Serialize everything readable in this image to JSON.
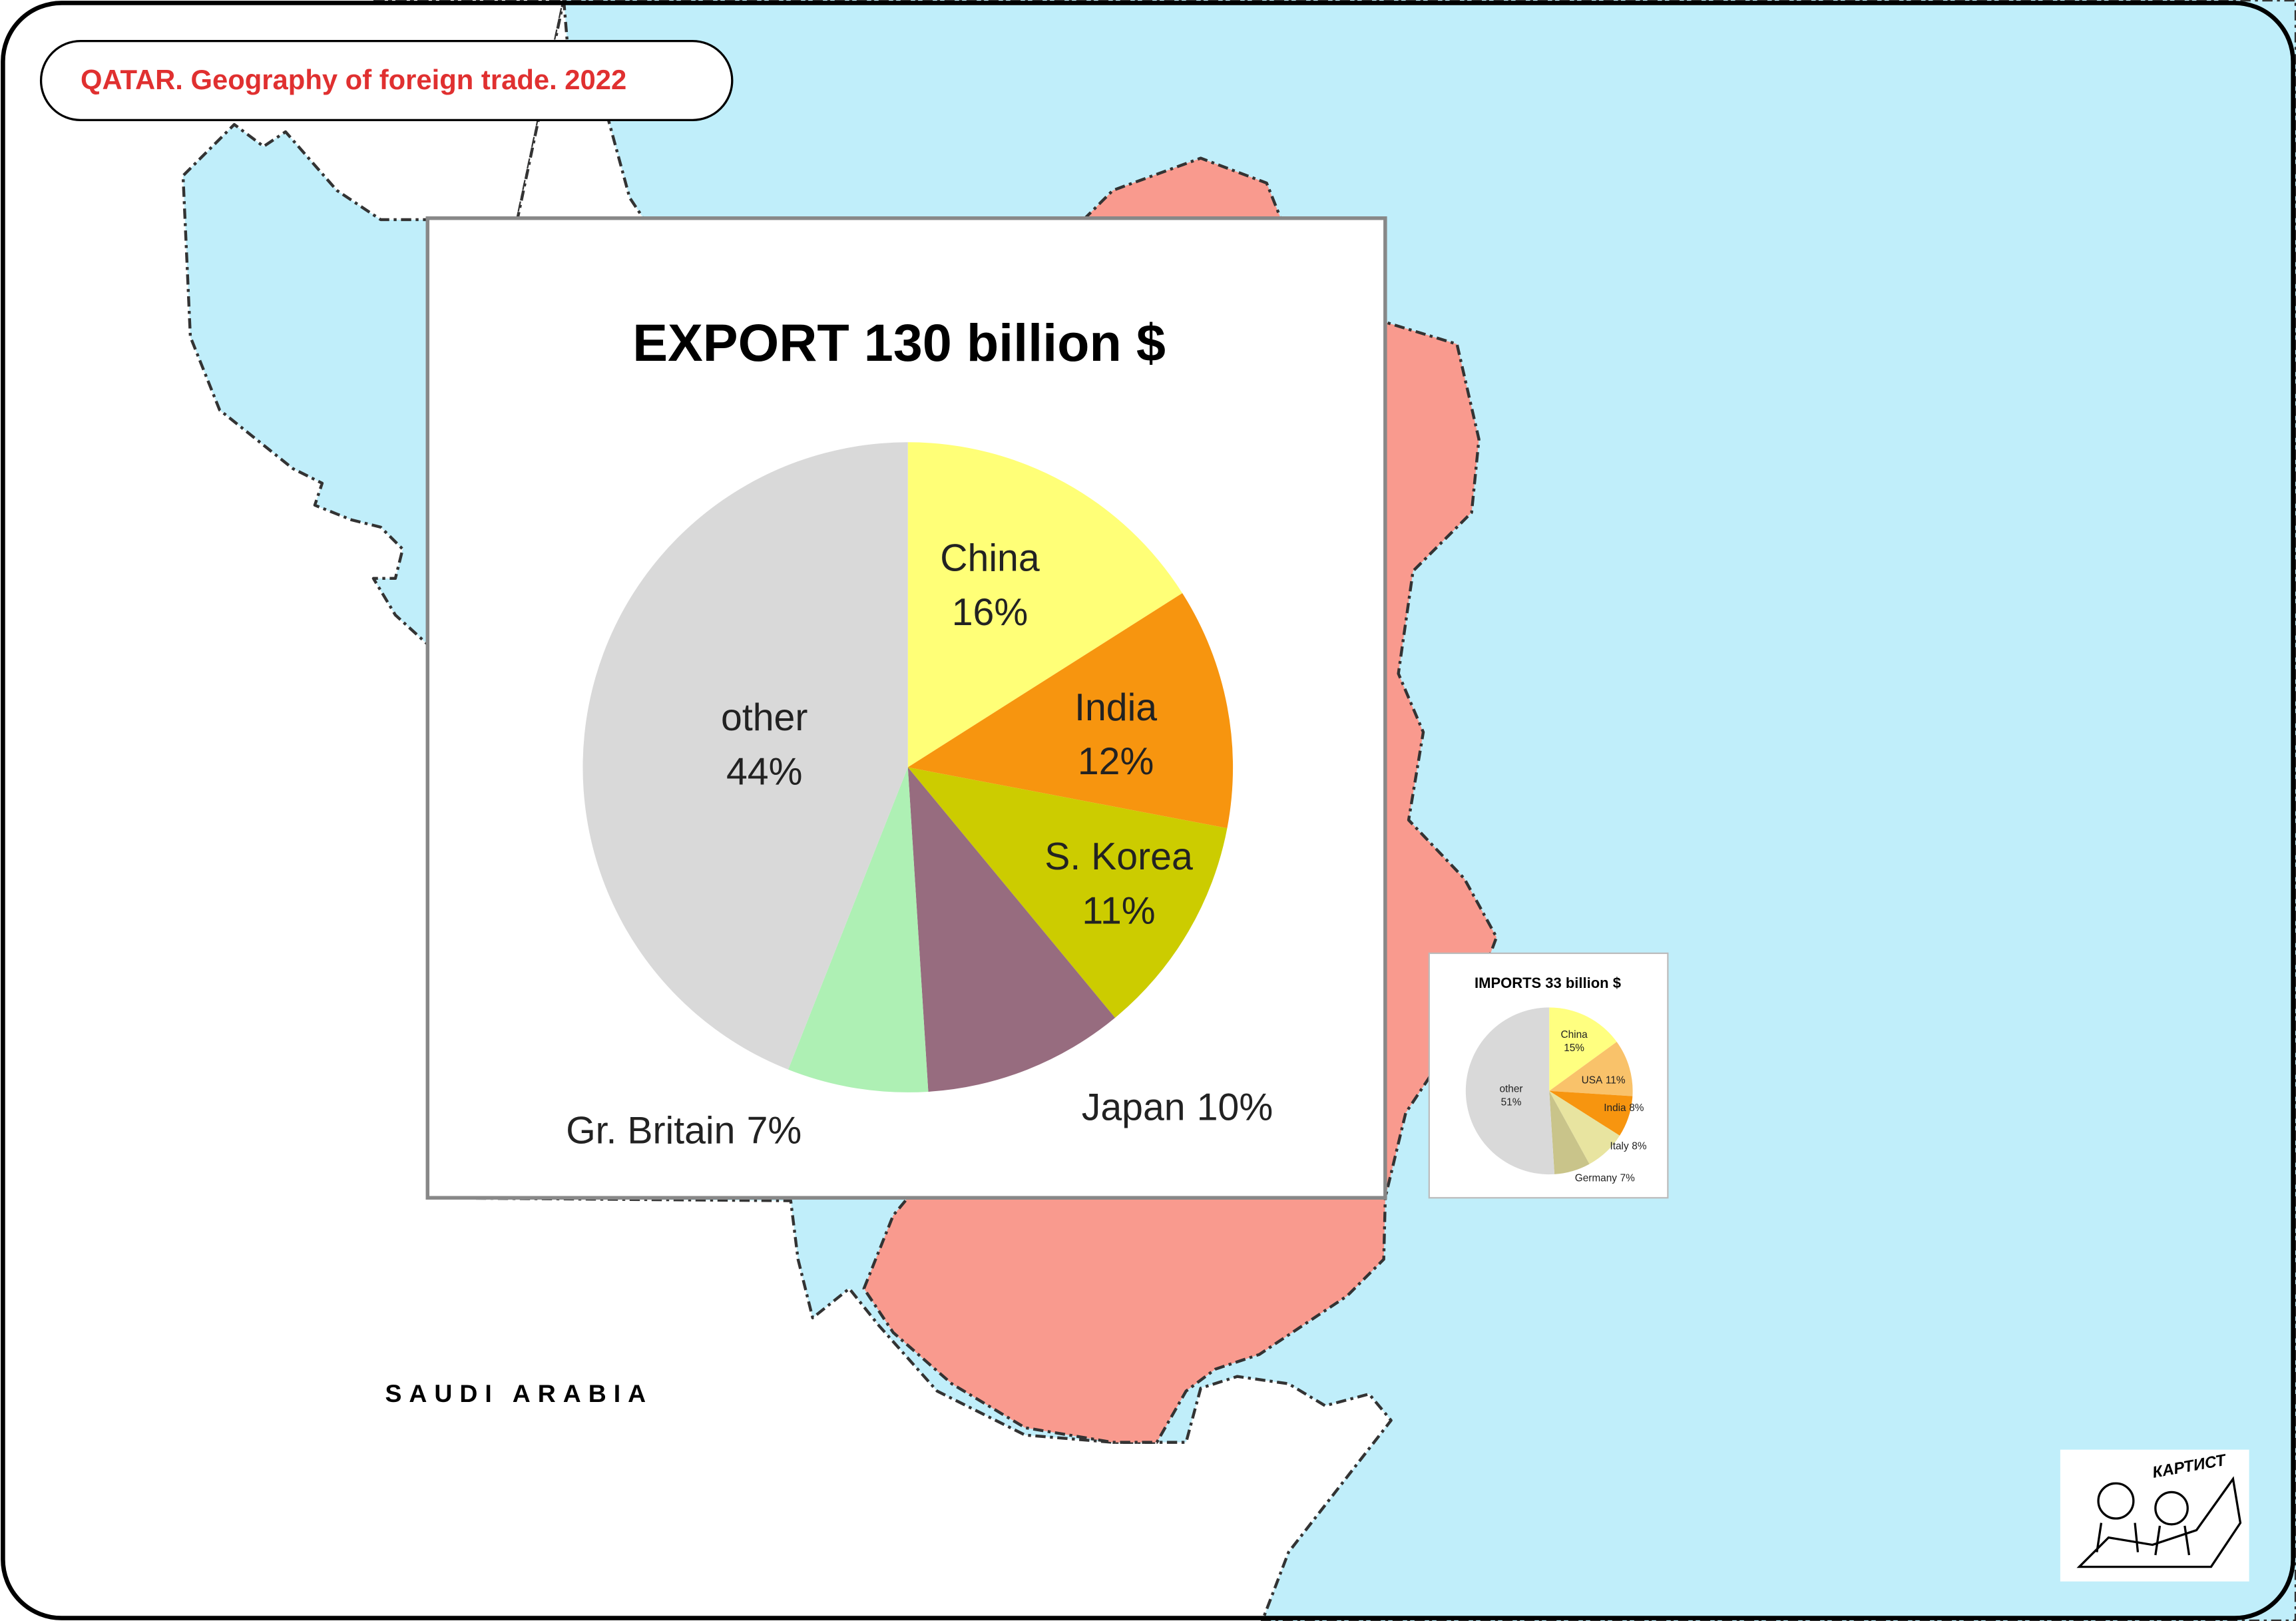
{
  "title": "QATAR. Geography of foreign trade. 2022",
  "map_labels": [
    "SAUDI ARABIA"
  ],
  "logo_text": "КАРТИСТ",
  "chart_data": [
    {
      "type": "pie",
      "title": "EXPORT 130 billion $",
      "categories": [
        "China",
        "India",
        "S. Korea",
        "Japan",
        "Gr. Britain",
        "other"
      ],
      "values": [
        16,
        12,
        11,
        10,
        7,
        44
      ],
      "value_labels": [
        "16%",
        "12%",
        "11%",
        "10%",
        "7%",
        "44%"
      ],
      "colors": [
        "#ffff77",
        "#f7950f",
        "#cccc00",
        "#976c7f",
        "#aef0b4",
        "#d9d9d9"
      ]
    },
    {
      "type": "pie",
      "title": "IMPORTS 33 billion $",
      "categories": [
        "China",
        "USA",
        "India",
        "Italy",
        "Germany",
        "other"
      ],
      "values": [
        15,
        11,
        8,
        8,
        7,
        51
      ],
      "value_labels": [
        "15%",
        "11%",
        "8%",
        "8%",
        "7%",
        "51%"
      ],
      "colors": [
        "#ffff80",
        "#f9c26a",
        "#f7950f",
        "#e8e4a0",
        "#c9c48a",
        "#d9d9d9"
      ]
    }
  ]
}
